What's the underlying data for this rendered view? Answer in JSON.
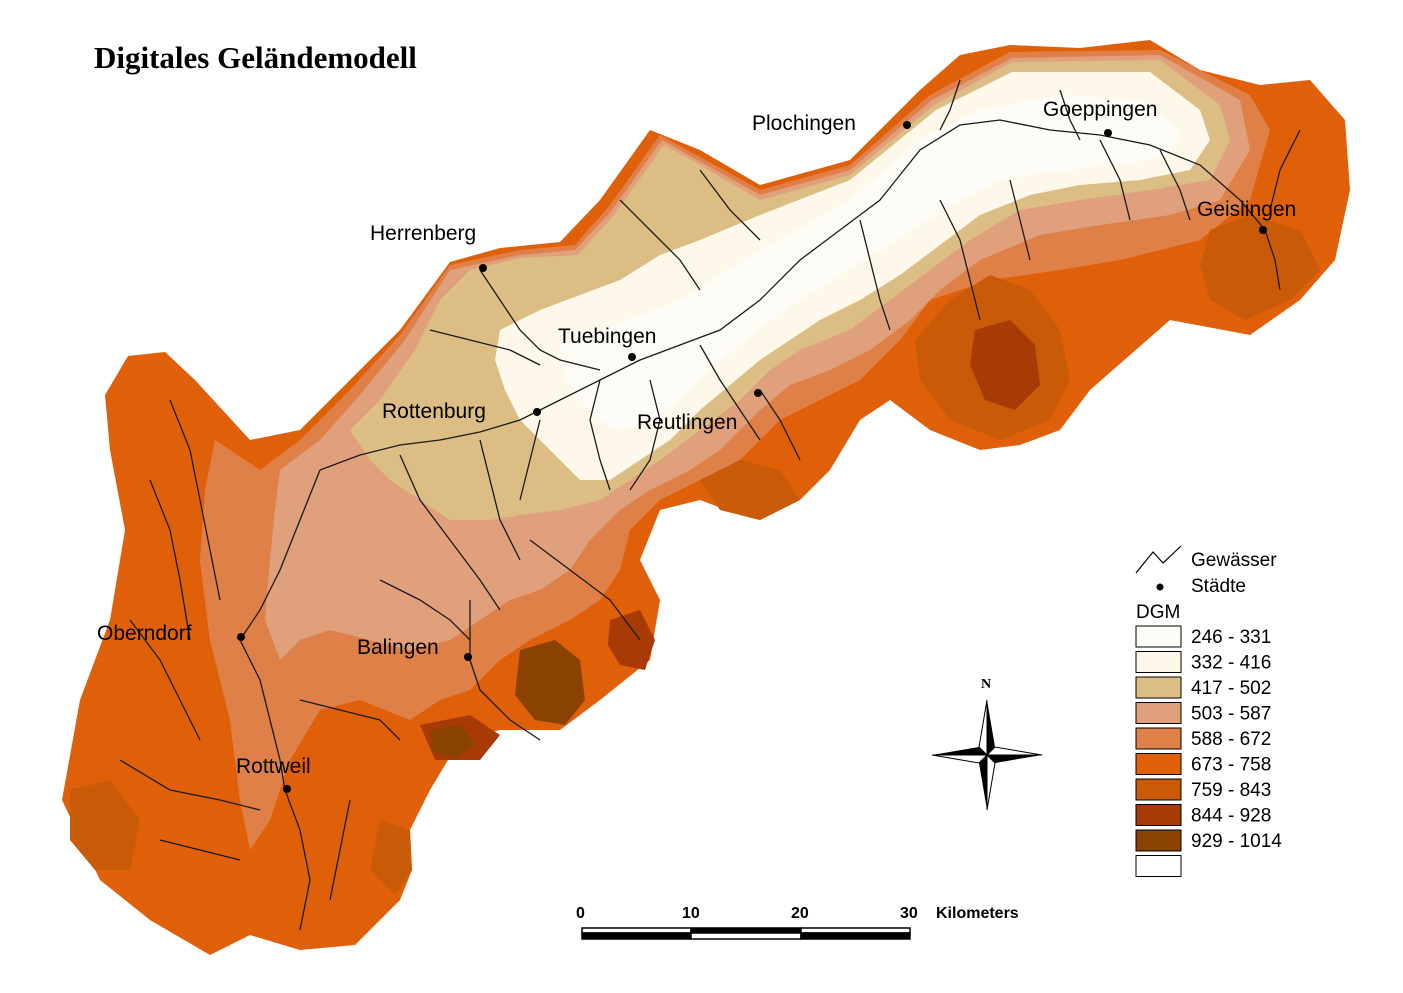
{
  "title": "Digitales Geländemodell",
  "cities": [
    {
      "name": "Plochingen"
    },
    {
      "name": "Goeppingen"
    },
    {
      "name": "Geislingen"
    },
    {
      "name": "Herrenberg"
    },
    {
      "name": "Tuebingen"
    },
    {
      "name": "Rottenburg"
    },
    {
      "name": "Reutlingen"
    },
    {
      "name": "Oberndorf"
    },
    {
      "name": "Balingen"
    },
    {
      "name": "Rottweil"
    }
  ],
  "legend": {
    "rivers_label": "Gewässer",
    "cities_label": "Städte",
    "dgm_label": "DGM",
    "classes": [
      {
        "range": "246 - 331",
        "color": "#fefcf6"
      },
      {
        "range": "332 - 416",
        "color": "#fdf8ea"
      },
      {
        "range": "417 - 502",
        "color": "#dcbe84"
      },
      {
        "range": "503 - 587",
        "color": "#e0a07c"
      },
      {
        "range": "588 - 672",
        "color": "#e08049"
      },
      {
        "range": "673 - 758",
        "color": "#e0600a"
      },
      {
        "range": "759 - 843",
        "color": "#c85a08"
      },
      {
        "range": "844 - 928",
        "color": "#a83a06"
      },
      {
        "range": "929 - 1014",
        "color": "#8a4202"
      },
      {
        "range": "",
        "color": "#ffffff"
      }
    ]
  },
  "north_label": "N",
  "scale_bar": {
    "ticks": [
      "0",
      "10",
      "20",
      "30"
    ],
    "unit": "Kilometers"
  }
}
